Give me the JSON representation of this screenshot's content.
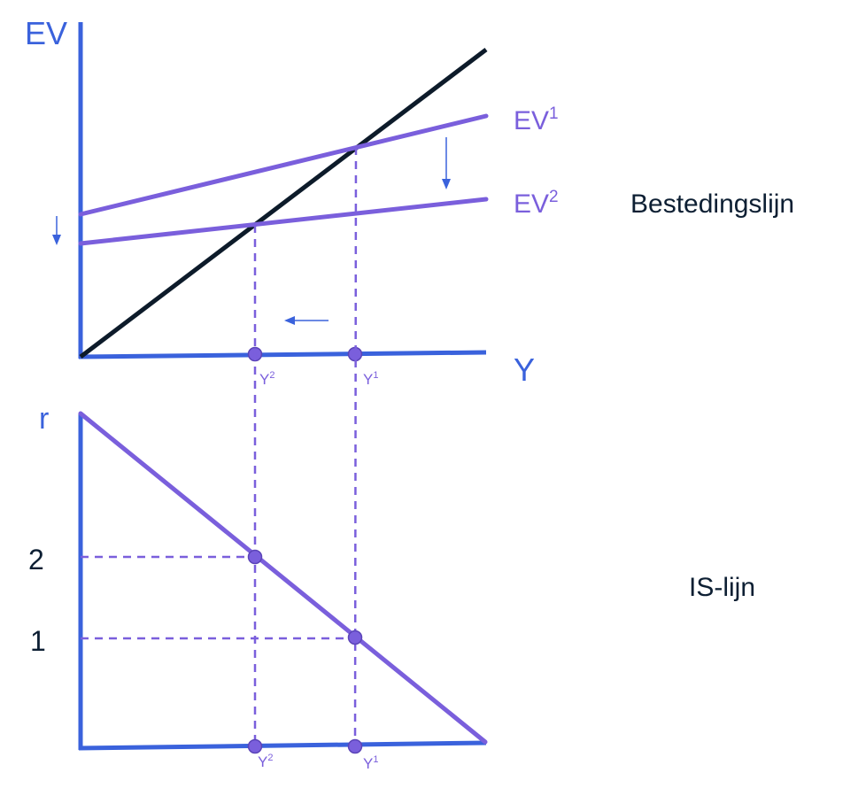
{
  "colors": {
    "axis": "#3a62dc",
    "curve": "#7a5fdc",
    "line_45": "#0d1b2a",
    "text": "#0d1f33"
  },
  "top_panel": {
    "y_axis_label": "EV",
    "x_axis_label": "Y",
    "curves": [
      {
        "label": "EV",
        "sup": "1"
      },
      {
        "label": "EV",
        "sup": "2"
      }
    ],
    "x_points": [
      {
        "label": "Y",
        "sup": "2"
      },
      {
        "label": "Y",
        "sup": "1"
      }
    ],
    "title": "Bestedingslijn",
    "arrows": [
      "down-arrow-intercept",
      "down-arrow-shift",
      "left-arrow-income"
    ]
  },
  "bottom_panel": {
    "y_axis_label": "r",
    "y_ticks": [
      "2",
      "1"
    ],
    "x_points": [
      {
        "label": "Y",
        "sup": "2"
      },
      {
        "label": "Y",
        "sup": "1"
      }
    ],
    "title": "IS-lijn"
  }
}
